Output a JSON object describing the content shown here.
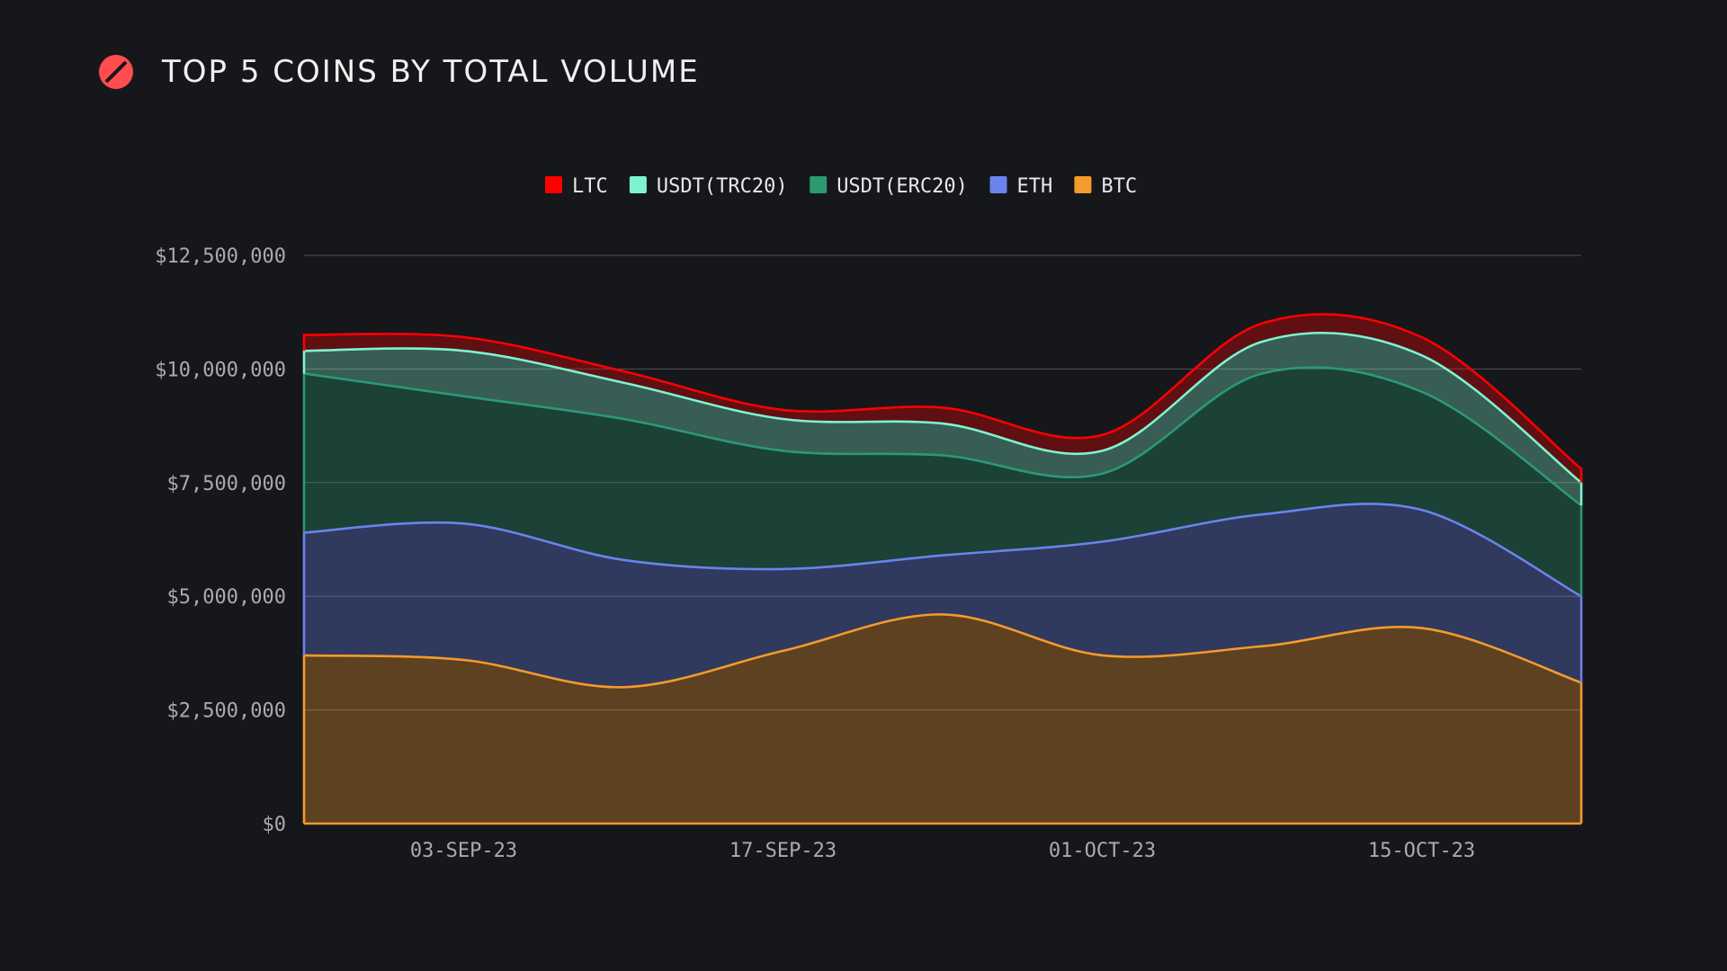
{
  "header": {
    "title": "TOP 5 COINS BY TOTAL VOLUME"
  },
  "chart_data": {
    "type": "area",
    "stacked": true,
    "title": "TOP 5 COINS BY TOTAL VOLUME",
    "xlabel": "",
    "ylabel": "",
    "x_ticks": [
      "03-SEP-23",
      "17-SEP-23",
      "01-OCT-23",
      "15-OCT-23"
    ],
    "x": [
      "27-AUG-23",
      "03-SEP-23",
      "10-SEP-23",
      "17-SEP-23",
      "24-SEP-23",
      "01-OCT-23",
      "08-OCT-23",
      "15-OCT-23",
      "22-OCT-23"
    ],
    "y_ticks": [
      "$0",
      "$2,500,000",
      "$5,000,000",
      "$7,500,000",
      "$10,000,000",
      "$12,500,000"
    ],
    "ylim": [
      0,
      12500000
    ],
    "grid": true,
    "legend_position": "top-center",
    "series_order_bottom_to_top": [
      "BTC",
      "ETH",
      "USDT(ERC20)",
      "USDT(TRC20)",
      "LTC"
    ],
    "series": [
      {
        "name": "LTC",
        "color": "#ff0000",
        "values": [
          350000,
          300000,
          250000,
          200000,
          350000,
          350000,
          400000,
          400000,
          300000
        ]
      },
      {
        "name": "USDT(TRC20)",
        "color": "#7ff3cf",
        "values": [
          500000,
          1000000,
          800000,
          700000,
          700000,
          500000,
          700000,
          800000,
          500000
        ]
      },
      {
        "name": "USDT(ERC20)",
        "color": "#2b9a70",
        "values": [
          3500000,
          2800000,
          3100000,
          2600000,
          2200000,
          1500000,
          3100000,
          2600000,
          2000000
        ]
      },
      {
        "name": "ETH",
        "color": "#6b83ec",
        "values": [
          2700000,
          3000000,
          2800000,
          1800000,
          1300000,
          2500000,
          2900000,
          2600000,
          1900000
        ]
      },
      {
        "name": "BTC",
        "color": "#f59a2c",
        "values": [
          3700000,
          3600000,
          3000000,
          3800000,
          4600000,
          3700000,
          3900000,
          4300000,
          3100000
        ]
      }
    ]
  },
  "colors": {
    "background": "#16171b",
    "grid": "#505258",
    "tick_text": "#a9abb0",
    "legend_text": "#e8e8e8"
  }
}
